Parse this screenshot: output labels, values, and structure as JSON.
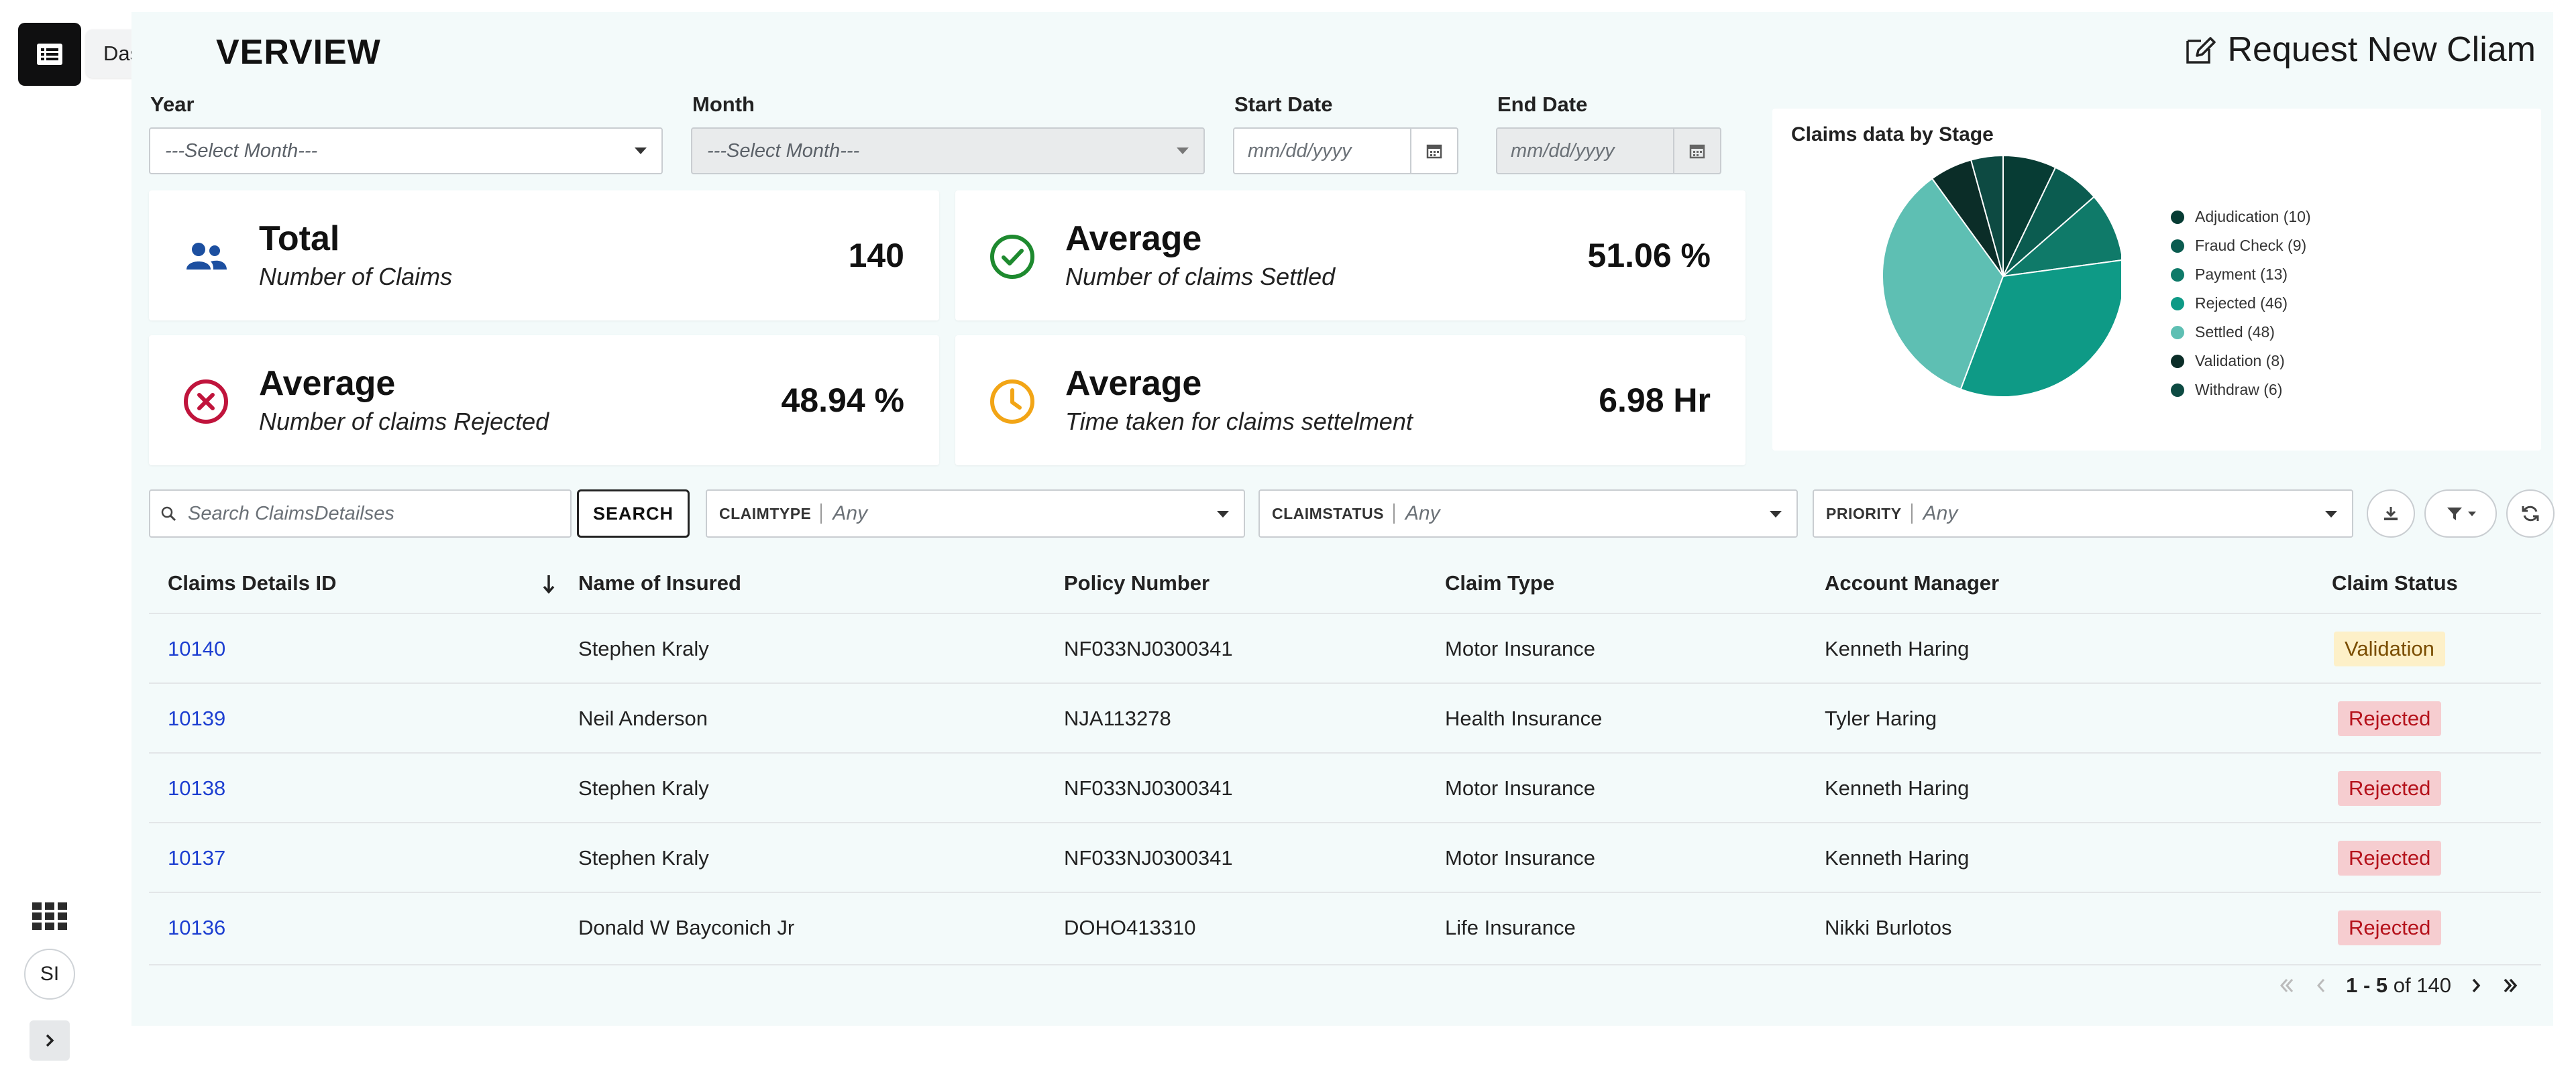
{
  "rail": {
    "tooltip": "Dashboard",
    "avatar_initials": "SI"
  },
  "header": {
    "title": "VERVIEW",
    "request_label": "Request New Cliam"
  },
  "filters": {
    "year_label": "Year",
    "year_value": "---Select Month---",
    "month_label": "Month",
    "month_value": "---Select Month---",
    "start_label": "Start Date",
    "start_placeholder": "mm/dd/yyyy",
    "end_label": "End Date",
    "end_placeholder": "mm/dd/yyyy"
  },
  "stats": [
    {
      "heading": "Total",
      "sub": "Number of Claims",
      "value": "140",
      "icon": "users-icon",
      "color": "#1c4fa0"
    },
    {
      "heading": "Average",
      "sub": "Number of claims Settled",
      "value": "51.06 %",
      "icon": "check-circle-icon",
      "color": "#1e8a2f"
    },
    {
      "heading": "Average",
      "sub": "Number of claims Rejected",
      "value": "48.94 %",
      "icon": "x-circle-icon",
      "color": "#c0143c"
    },
    {
      "heading": "Average",
      "sub": "Time taken for claims settelment",
      "value": "6.98 Hr",
      "icon": "clock-icon",
      "color": "#f2a516"
    }
  ],
  "chart_data": {
    "type": "pie",
    "title": "Claims data by Stage",
    "legend_position": "right",
    "slices": [
      {
        "label": "Adjudication (10)",
        "value": 10,
        "color": "#073c34"
      },
      {
        "label": "Fraud Check (9)",
        "value": 9,
        "color": "#0b5c50"
      },
      {
        "label": "Payment (13)",
        "value": 13,
        "color": "#0f7a69"
      },
      {
        "label": "Rejected (46)",
        "value": 46,
        "color": "#0e9a86"
      },
      {
        "label": "Settled (48)",
        "value": 48,
        "color": "#5ebfb3"
      },
      {
        "label": "Validation (8)",
        "value": 8,
        "color": "#0b2d28"
      },
      {
        "label": "Withdraw (6)",
        "value": 6,
        "color": "#0d4a42"
      }
    ]
  },
  "search": {
    "placeholder": "Search ClaimsDetailses",
    "button": "SEARCH"
  },
  "facets": [
    {
      "label": "CLAIMTYPE",
      "value": "Any"
    },
    {
      "label": "CLAIMSTATUS",
      "value": "Any"
    },
    {
      "label": "PRIORITY",
      "value": "Any"
    }
  ],
  "table": {
    "columns": [
      "Claims Details ID",
      "Name of Insured",
      "Policy Number",
      "Claim Type",
      "Account Manager",
      "Claim Status"
    ],
    "rows": [
      {
        "id": "10140",
        "name": "Stephen Kraly",
        "policy": "NF033NJ0300341",
        "type": "Motor Insurance",
        "manager": "Kenneth Haring",
        "status": "Validation"
      },
      {
        "id": "10139",
        "name": "Neil Anderson",
        "policy": "NJA113278",
        "type": "Health Insurance",
        "manager": "Tyler Haring",
        "status": "Rejected"
      },
      {
        "id": "10138",
        "name": "Stephen Kraly",
        "policy": "NF033NJ0300341",
        "type": "Motor Insurance",
        "manager": "Kenneth Haring",
        "status": "Rejected"
      },
      {
        "id": "10137",
        "name": "Stephen Kraly",
        "policy": "NF033NJ0300341",
        "type": "Motor Insurance",
        "manager": "Kenneth Haring",
        "status": "Rejected"
      },
      {
        "id": "10136",
        "name": "Donald W Bayconich Jr",
        "policy": "DOHO413310",
        "type": "Life Insurance",
        "manager": "Nikki Burlotos",
        "status": "Rejected"
      }
    ],
    "status_colors": {
      "Validation": {
        "bg": "#fdf0c8",
        "fg": "#7a4d00"
      },
      "Rejected": {
        "bg": "#f6cdd0",
        "fg": "#b5121b"
      }
    }
  },
  "pager": {
    "range": "1 - 5",
    "of_label": "of 140"
  }
}
